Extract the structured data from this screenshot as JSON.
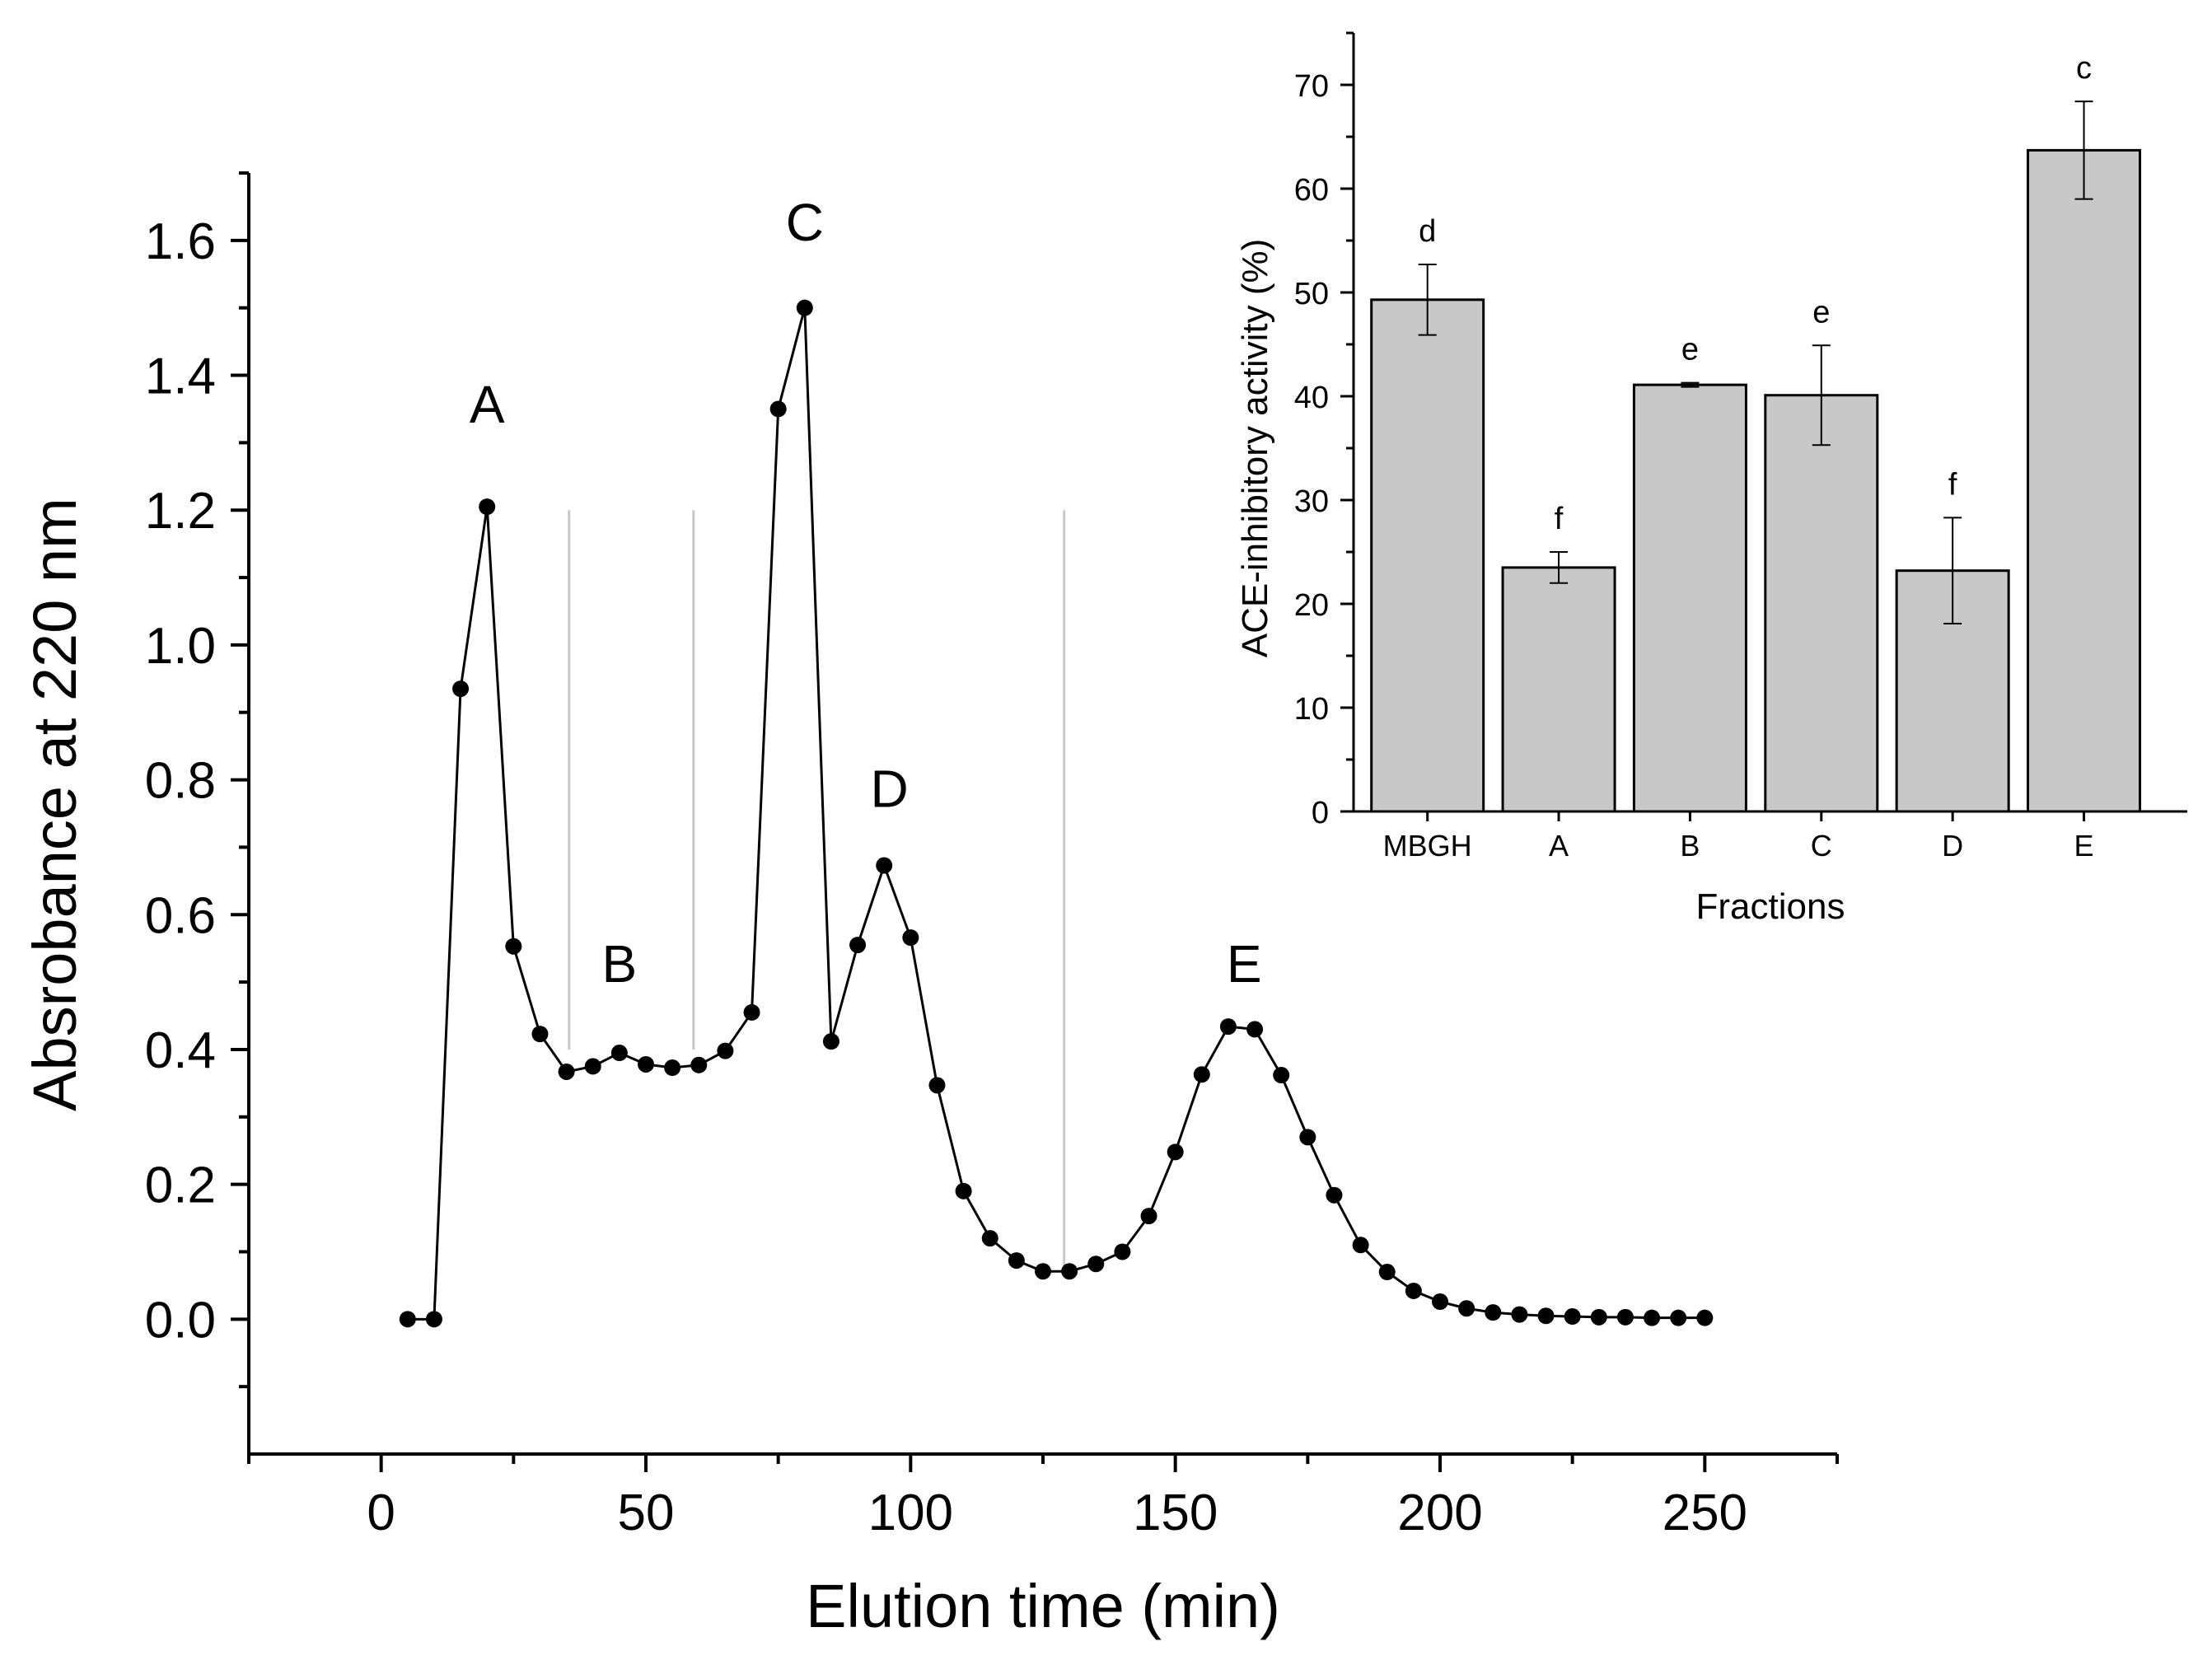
{
  "chart_data": [
    {
      "type": "line",
      "title": "",
      "xlabel": "Elution time (min)",
      "ylabel": "Absrobance at 220 nm",
      "xlim": [
        -25,
        275
      ],
      "ylim": [
        -0.2,
        1.7
      ],
      "xticks": [
        0,
        50,
        100,
        150,
        200,
        250
      ],
      "xtick_labels": [
        "0",
        "50",
        "100",
        "150",
        "200",
        "250"
      ],
      "yticks": [
        0.0,
        0.2,
        0.4,
        0.6,
        0.8,
        1.0,
        1.2,
        1.4,
        1.6
      ],
      "ytick_labels": [
        "0.0",
        "0.2",
        "0.4",
        "0.6",
        "0.8",
        "1.0",
        "1.2",
        "1.4",
        "1.6"
      ],
      "series": [
        {
          "name": "Absorbance",
          "x": [
            5,
            10,
            15,
            20,
            25,
            30,
            35,
            40,
            45,
            50,
            55,
            60,
            65,
            70,
            75,
            80,
            85,
            90,
            95,
            100,
            105,
            110,
            115,
            120,
            125,
            130,
            135,
            140,
            145,
            150,
            155,
            160,
            165,
            170,
            175,
            180,
            185,
            190,
            195,
            200,
            205,
            210,
            215,
            220,
            225,
            230,
            235,
            240,
            245,
            250
          ],
          "y": [
            0.0,
            0.0,
            0.935,
            1.205,
            0.553,
            0.423,
            0.367,
            0.375,
            0.395,
            0.378,
            0.373,
            0.377,
            0.398,
            0.455,
            1.35,
            1.5,
            0.412,
            0.555,
            0.673,
            0.566,
            0.347,
            0.19,
            0.12,
            0.087,
            0.071,
            0.071,
            0.082,
            0.1,
            0.153,
            0.248,
            0.363,
            0.434,
            0.43,
            0.362,
            0.27,
            0.184,
            0.11,
            0.07,
            0.042,
            0.026,
            0.016,
            0.01,
            0.007,
            0.005,
            0.004,
            0.003,
            0.003,
            0.002,
            0.002,
            0.002
          ]
        }
      ],
      "peak_labels": [
        {
          "text": "A",
          "x": 20,
          "y": 1.33
        },
        {
          "text": "B",
          "x": 45,
          "y": 0.5
        },
        {
          "text": "C",
          "x": 80,
          "y": 1.6
        },
        {
          "text": "D",
          "x": 96,
          "y": 0.76
        },
        {
          "text": "E",
          "x": 163,
          "y": 0.5
        }
      ],
      "dividers": [
        {
          "x": 35.5,
          "y_from": 0.4,
          "y_to": 1.2
        },
        {
          "x": 59,
          "y_from": 0.4,
          "y_to": 1.2
        },
        {
          "x": 129,
          "y_from": 0.08,
          "y_to": 1.2
        }
      ]
    },
    {
      "type": "bar",
      "title": "",
      "xlabel": "Fractions",
      "ylabel": "ACE-inhibitory activity (%)",
      "ylim": [
        0,
        75
      ],
      "yticks": [
        0,
        10,
        20,
        30,
        40,
        50,
        60,
        70
      ],
      "ytick_labels": [
        "0",
        "10",
        "20",
        "30",
        "40",
        "50",
        "60",
        "70"
      ],
      "categories": [
        "MBGH",
        "A",
        "B",
        "C",
        "D",
        "E"
      ],
      "values": [
        49.3,
        23.5,
        41.1,
        40.1,
        23.2,
        63.7
      ],
      "errors": [
        3.4,
        1.5,
        0.2,
        4.8,
        5.1,
        4.7
      ],
      "letters": [
        "d",
        "f",
        "e",
        "e",
        "f",
        "c"
      ],
      "bar_color": "#c8c8c8"
    }
  ]
}
